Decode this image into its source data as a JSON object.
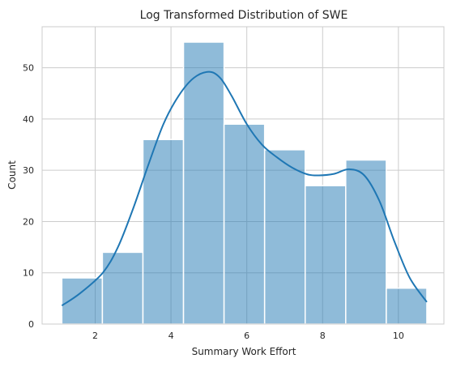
{
  "chart_data": {
    "type": "histogram",
    "title": "Log Transformed Distribution of SWE",
    "xlabel": "Summary Work Effort",
    "ylabel": "Count",
    "xlim": [
      0.6,
      11.2
    ],
    "ylim": [
      0,
      58
    ],
    "xticks": [
      2,
      4,
      6,
      8,
      10
    ],
    "yticks": [
      0,
      10,
      20,
      30,
      40,
      50
    ],
    "grid": true,
    "bins": [
      {
        "x0": 1.12,
        "x1": 2.19,
        "count": 9
      },
      {
        "x0": 2.19,
        "x1": 3.26,
        "count": 14
      },
      {
        "x0": 3.26,
        "x1": 4.33,
        "count": 36
      },
      {
        "x0": 4.33,
        "x1": 5.4,
        "count": 55
      },
      {
        "x0": 5.4,
        "x1": 6.47,
        "count": 39
      },
      {
        "x0": 6.47,
        "x1": 7.54,
        "count": 34
      },
      {
        "x0": 7.54,
        "x1": 8.61,
        "count": 27
      },
      {
        "x0": 8.61,
        "x1": 9.68,
        "count": 32
      },
      {
        "x0": 9.68,
        "x1": 10.75,
        "count": 7
      }
    ],
    "kde": {
      "x": [
        1.12,
        1.6,
        2.2,
        2.6,
        3.0,
        3.4,
        3.8,
        4.2,
        4.6,
        5.0,
        5.3,
        5.6,
        6.0,
        6.4,
        6.8,
        7.2,
        7.6,
        7.9,
        8.3,
        8.7,
        9.1,
        9.5,
        9.9,
        10.3,
        10.75
      ],
      "y": [
        3.6,
        6.0,
        10.0,
        15.0,
        22.5,
        31.0,
        39.0,
        44.5,
        48.0,
        49.2,
        48.0,
        44.5,
        39.0,
        35.0,
        32.5,
        30.5,
        29.2,
        29.0,
        29.3,
        30.2,
        29.0,
        24.0,
        16.0,
        9.0,
        4.3
      ]
    },
    "colors": {
      "bar_fill": "#1f77b4",
      "bar_fill_opacity": 0.5,
      "bar_edge": "#ffffff",
      "line": "#1f77b4",
      "grid": "#cccccc",
      "spine": "#cccccc"
    }
  }
}
